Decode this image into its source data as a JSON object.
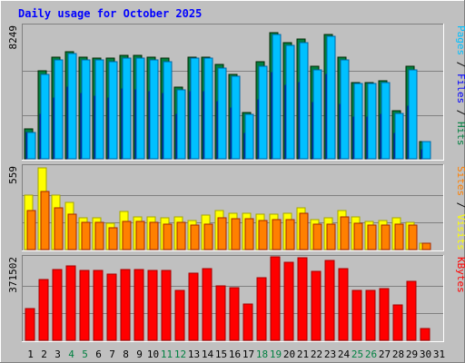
{
  "title": "Daily usage for October 2025",
  "colors": {
    "background": "#c0c0c0",
    "plot_bg": "#c0c0c0",
    "title_text": "#0000ff",
    "hits": "#008040",
    "files": "#0000ff",
    "pages": "#00c0ff",
    "visits": "#ffff00",
    "sites": "#ff8000",
    "kbytes": "#ff0000",
    "weekend": "#008040",
    "grid": "#808080"
  },
  "chart_data": {
    "type": "bar",
    "categories": [
      "1",
      "2",
      "3",
      "4",
      "5",
      "6",
      "7",
      "8",
      "9",
      "10",
      "11",
      "12",
      "13",
      "14",
      "15",
      "16",
      "17",
      "18",
      "19",
      "20",
      "21",
      "22",
      "23",
      "24",
      "25",
      "26",
      "27",
      "28",
      "29",
      "30",
      "31"
    ],
    "weekend_days": [
      "4",
      "5",
      "11",
      "12",
      "18",
      "19",
      "25",
      "26"
    ],
    "panels": [
      {
        "ymax_label": "8249",
        "ymax": 8249,
        "legend": [
          {
            "text": "Pages",
            "color_key": "pages"
          },
          {
            "text": " / ",
            "color_key": "sep"
          },
          {
            "text": "Files",
            "color_key": "files"
          },
          {
            "text": " / ",
            "color_key": "sep"
          },
          {
            "text": "Hits",
            "color_key": "hits"
          }
        ],
        "series": [
          {
            "name": "Hits",
            "color_key": "hits",
            "values": [
              1850,
              5500,
              6400,
              6700,
              6400,
              6300,
              6300,
              6500,
              6500,
              6400,
              6300,
              4500,
              6400,
              6400,
              5900,
              5300,
              2900,
              6100,
              7900,
              7300,
              7500,
              5800,
              7800,
              6400,
              4800,
              4800,
              4900,
              3000,
              5800,
              1100,
              0
            ]
          },
          {
            "name": "Files",
            "color_key": "files",
            "values": [
              1650,
              2800,
              3800,
              4500,
              4100,
              3900,
              3800,
              4400,
              4300,
              4200,
              4100,
              2800,
              4200,
              4200,
              3600,
              3200,
              1600,
              3700,
              5400,
              4600,
              4800,
              3500,
              5300,
              3400,
              2600,
              2600,
              2800,
              1600,
              3300,
              550,
              0
            ]
          },
          {
            "name": "Pages",
            "color_key": "pages",
            "values": [
              1650,
              5300,
              6200,
              6600,
              6200,
              6200,
              6100,
              6300,
              6300,
              6200,
              6100,
              4300,
              6300,
              6300,
              5700,
              5200,
              2800,
              5800,
              7800,
              7100,
              7300,
              5600,
              7700,
              6200,
              4700,
              4700,
              4800,
              2850,
              5600,
              1100,
              0
            ]
          }
        ]
      },
      {
        "ymax_label": "559",
        "ymax": 559,
        "legend": [
          {
            "text": "Sites",
            "color_key": "sites"
          },
          {
            "text": " / ",
            "color_key": "sep"
          },
          {
            "text": "Visits",
            "color_key": "visits"
          }
        ],
        "series": [
          {
            "name": "Visits",
            "color_key": "visits",
            "values": [
              375,
              559,
              370,
              320,
              215,
              215,
              180,
              260,
              225,
              225,
              215,
              225,
              200,
              235,
              265,
              250,
              250,
              245,
              245,
              250,
              285,
              205,
              220,
              265,
              225,
              195,
              200,
              220,
              185,
              45,
              0
            ]
          },
          {
            "name": "Sites",
            "color_key": "sites",
            "values": [
              265,
              400,
              285,
              245,
              185,
              185,
              150,
              195,
              190,
              185,
              175,
              185,
              170,
              175,
              215,
              210,
              210,
              200,
              205,
              205,
              250,
              175,
              175,
              225,
              180,
              165,
              165,
              175,
              170,
              45,
              0
            ]
          }
        ]
      },
      {
        "ymax_label": "371502",
        "ymax": 371502,
        "legend": [
          {
            "text": "KBytes",
            "color_key": "kbytes"
          }
        ],
        "series": [
          {
            "name": "KBytes",
            "color_key": "kbytes",
            "values": [
              145000,
              278000,
              323000,
              340000,
              316000,
              316000,
              302000,
              322000,
              320000,
              316000,
              316000,
              227000,
              307000,
              327000,
              248000,
              241000,
              165000,
              283000,
              380000,
              357000,
              376000,
              313000,
              362000,
              325000,
              229000,
              229000,
              234000,
              161000,
              269000,
              55000,
              0
            ]
          }
        ]
      }
    ]
  }
}
